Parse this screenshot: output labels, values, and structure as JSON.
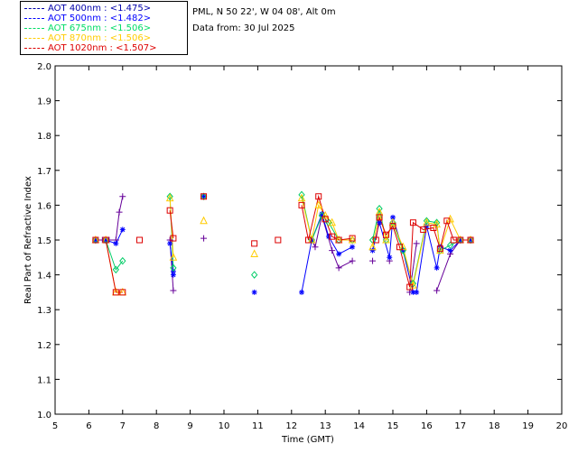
{
  "header": {
    "location": "PML, N 50 22', W 04 08', Alt 0m",
    "data_from": "Data from: 30 Jul 2025"
  },
  "legend": [
    {
      "label": "AOT  400nm : <1.475>",
      "color": "#0000aa"
    },
    {
      "label": "AOT  500nm : <1.482>",
      "color": "#0000ff"
    },
    {
      "label": "AOT  675nm : <1.506>",
      "color": "#00dd66"
    },
    {
      "label": "AOT  870nm : <1.506>",
      "color": "#ffcc00"
    },
    {
      "label": "AOT 1020nm : <1.507>",
      "color": "#dd0000"
    }
  ],
  "chart_data": {
    "type": "scatter",
    "title": "",
    "xlabel": "Time (GMT)",
    "ylabel": "Real Part of Refractive Index",
    "xlim": [
      5,
      20
    ],
    "ylim": [
      1.0,
      2.0
    ],
    "xticks": [
      "5",
      "6",
      "7",
      "8",
      "9",
      "10",
      "11",
      "12",
      "13",
      "14",
      "15",
      "16",
      "17",
      "18",
      "19",
      "20"
    ],
    "yticks": [
      "1.0",
      "1.1",
      "1.2",
      "1.3",
      "1.4",
      "1.5",
      "1.6",
      "1.7",
      "1.8",
      "1.9",
      "2.0"
    ],
    "series": [
      {
        "name": "AOT 400nm",
        "color": "#660099",
        "marker": "plus",
        "points": [
          [
            6.2,
            1.5
          ],
          [
            6.4,
            1.5
          ],
          [
            6.6,
            1.5
          ],
          [
            6.8,
            1.5
          ],
          [
            6.9,
            1.58
          ],
          [
            7.0,
            1.625
          ],
          [
            8.4,
            1.5
          ],
          [
            8.5,
            1.355
          ],
          [
            9.4,
            1.505
          ],
          [
            12.6,
            1.5
          ],
          [
            12.7,
            1.48
          ],
          [
            12.9,
            1.57
          ],
          [
            13.2,
            1.47
          ],
          [
            13.4,
            1.42
          ],
          [
            13.8,
            1.44
          ],
          [
            14.4,
            1.44
          ],
          [
            14.9,
            1.44
          ],
          [
            15.5,
            1.35
          ],
          [
            15.7,
            1.49
          ],
          [
            16.3,
            1.355
          ],
          [
            16.7,
            1.46
          ],
          [
            17.0,
            1.5
          ],
          [
            17.3,
            1.5
          ]
        ]
      },
      {
        "name": "AOT 500nm",
        "color": "#0000ff",
        "marker": "star",
        "points": [
          [
            6.2,
            1.5
          ],
          [
            6.5,
            1.5
          ],
          [
            6.8,
            1.49
          ],
          [
            7.0,
            1.53
          ],
          [
            8.4,
            1.49
          ],
          [
            8.5,
            1.41
          ],
          [
            8.5,
            1.4
          ],
          [
            9.4,
            1.625
          ],
          [
            10.9,
            1.35
          ],
          [
            12.3,
            1.35
          ],
          [
            12.6,
            1.5
          ],
          [
            12.9,
            1.575
          ],
          [
            13.1,
            1.51
          ],
          [
            13.4,
            1.46
          ],
          [
            13.8,
            1.48
          ],
          [
            14.4,
            1.47
          ],
          [
            14.6,
            1.55
          ],
          [
            14.9,
            1.45
          ],
          [
            15.0,
            1.565
          ],
          [
            15.3,
            1.47
          ],
          [
            15.6,
            1.35
          ],
          [
            15.7,
            1.35
          ],
          [
            16.0,
            1.54
          ],
          [
            16.3,
            1.42
          ],
          [
            16.4,
            1.48
          ],
          [
            16.7,
            1.47
          ],
          [
            17.0,
            1.5
          ],
          [
            17.3,
            1.5
          ]
        ]
      },
      {
        "name": "AOT 675nm",
        "color": "#00cc66",
        "marker": "diamond",
        "points": [
          [
            6.2,
            1.5
          ],
          [
            6.5,
            1.5
          ],
          [
            6.8,
            1.415
          ],
          [
            7.0,
            1.44
          ],
          [
            8.4,
            1.625
          ],
          [
            8.5,
            1.42
          ],
          [
            9.4,
            1.625
          ],
          [
            10.9,
            1.4
          ],
          [
            12.3,
            1.63
          ],
          [
            12.6,
            1.5
          ],
          [
            12.9,
            1.57
          ],
          [
            13.1,
            1.55
          ],
          [
            13.4,
            1.5
          ],
          [
            13.8,
            1.5
          ],
          [
            14.4,
            1.5
          ],
          [
            14.6,
            1.59
          ],
          [
            14.8,
            1.5
          ],
          [
            15.0,
            1.55
          ],
          [
            15.3,
            1.47
          ],
          [
            15.6,
            1.375
          ],
          [
            16.0,
            1.555
          ],
          [
            16.3,
            1.55
          ],
          [
            16.4,
            1.47
          ],
          [
            16.7,
            1.485
          ],
          [
            17.0,
            1.5
          ],
          [
            17.3,
            1.5
          ]
        ]
      },
      {
        "name": "AOT 870nm",
        "color": "#ffcc00",
        "marker": "triangle",
        "points": [
          [
            6.2,
            1.5
          ],
          [
            6.5,
            1.5
          ],
          [
            6.8,
            1.35
          ],
          [
            7.0,
            1.35
          ],
          [
            8.4,
            1.62
          ],
          [
            8.5,
            1.45
          ],
          [
            9.4,
            1.555
          ],
          [
            10.9,
            1.46
          ],
          [
            12.3,
            1.62
          ],
          [
            12.6,
            1.5
          ],
          [
            12.8,
            1.6
          ],
          [
            13.0,
            1.57
          ],
          [
            13.2,
            1.55
          ],
          [
            13.4,
            1.5
          ],
          [
            13.8,
            1.5
          ],
          [
            14.4,
            1.48
          ],
          [
            14.6,
            1.58
          ],
          [
            14.8,
            1.5
          ],
          [
            15.0,
            1.55
          ],
          [
            15.3,
            1.48
          ],
          [
            15.6,
            1.37
          ],
          [
            16.0,
            1.55
          ],
          [
            16.3,
            1.545
          ],
          [
            16.4,
            1.47
          ],
          [
            16.7,
            1.56
          ],
          [
            17.0,
            1.5
          ],
          [
            17.3,
            1.5
          ]
        ]
      },
      {
        "name": "AOT 1020nm",
        "color": "#dd0000",
        "marker": "square",
        "points": [
          [
            6.2,
            1.5
          ],
          [
            6.5,
            1.5
          ],
          [
            6.8,
            1.35
          ],
          [
            7.0,
            1.35
          ],
          [
            7.5,
            1.5
          ],
          [
            8.4,
            1.585
          ],
          [
            8.5,
            1.505
          ],
          [
            9.4,
            1.625
          ],
          [
            10.9,
            1.49
          ],
          [
            11.6,
            1.5
          ],
          [
            12.3,
            1.6
          ],
          [
            12.5,
            1.5
          ],
          [
            12.8,
            1.625
          ],
          [
            13.0,
            1.56
          ],
          [
            13.2,
            1.51
          ],
          [
            13.4,
            1.5
          ],
          [
            13.8,
            1.505
          ],
          [
            14.5,
            1.5
          ],
          [
            14.6,
            1.565
          ],
          [
            14.8,
            1.515
          ],
          [
            15.0,
            1.54
          ],
          [
            15.2,
            1.48
          ],
          [
            15.5,
            1.365
          ],
          [
            15.6,
            1.55
          ],
          [
            15.9,
            1.53
          ],
          [
            16.2,
            1.535
          ],
          [
            16.4,
            1.475
          ],
          [
            16.6,
            1.555
          ],
          [
            16.8,
            1.5
          ],
          [
            17.0,
            1.5
          ],
          [
            17.3,
            1.5
          ]
        ]
      }
    ]
  }
}
